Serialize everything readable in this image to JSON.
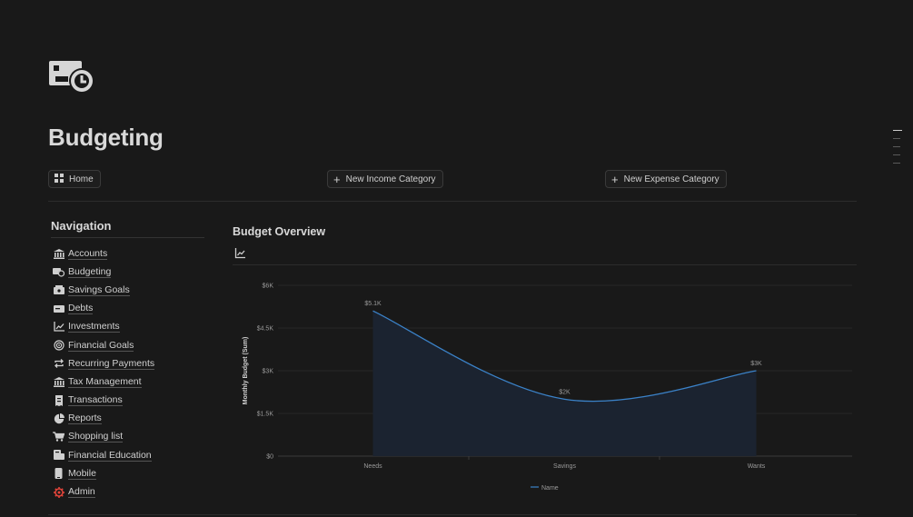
{
  "page": {
    "title": "Budgeting",
    "icon": "money-time-icon"
  },
  "top_buttons": {
    "home": "Home",
    "new_income": "New Income Category",
    "new_expense": "New Expense Category"
  },
  "navigation": {
    "heading": "Navigation",
    "items": [
      {
        "label": "Accounts",
        "icon": "bank-icon"
      },
      {
        "label": "Budgeting",
        "icon": "money-time-icon"
      },
      {
        "label": "Savings Goals",
        "icon": "piggy-bank-icon"
      },
      {
        "label": "Debts",
        "icon": "card-icon"
      },
      {
        "label": "Investments",
        "icon": "line-chart-icon"
      },
      {
        "label": "Financial Goals",
        "icon": "target-icon"
      },
      {
        "label": "Recurring Payments",
        "icon": "repeat-icon"
      },
      {
        "label": "Tax Management",
        "icon": "bank-icon"
      },
      {
        "label": "Transactions",
        "icon": "receipt-icon"
      },
      {
        "label": "Reports",
        "icon": "pie-chart-icon"
      },
      {
        "label": "Shopping list",
        "icon": "cart-icon"
      },
      {
        "label": "Financial Education",
        "icon": "book-icon"
      },
      {
        "label": "Mobile",
        "icon": "phone-icon"
      },
      {
        "label": "Admin",
        "icon": "gear-icon"
      }
    ]
  },
  "overview": {
    "title": "Budget Overview",
    "view_icon": "line-chart-icon"
  },
  "colors": {
    "background": "#191919",
    "line": "#3b82c8",
    "admin_icon": "#e0443a"
  },
  "chart_data": {
    "type": "area",
    "categories": [
      "Needs",
      "Savings",
      "Wants"
    ],
    "series": [
      {
        "name": "Name",
        "values": [
          5100,
          2000,
          3000
        ],
        "labels": [
          "$5.1K",
          "$2K",
          "$3K"
        ]
      }
    ],
    "ylabel": "Monthly Budget (Sum)",
    "xlabel": "",
    "ylim": [
      0,
      6000
    ],
    "yticks": [
      0,
      1500,
      3000,
      4500,
      6000
    ],
    "ytick_labels": [
      "$0",
      "$1.5K",
      "$3K",
      "$4.5K",
      "$6K"
    ],
    "grid": true,
    "legend_position": "bottom"
  }
}
